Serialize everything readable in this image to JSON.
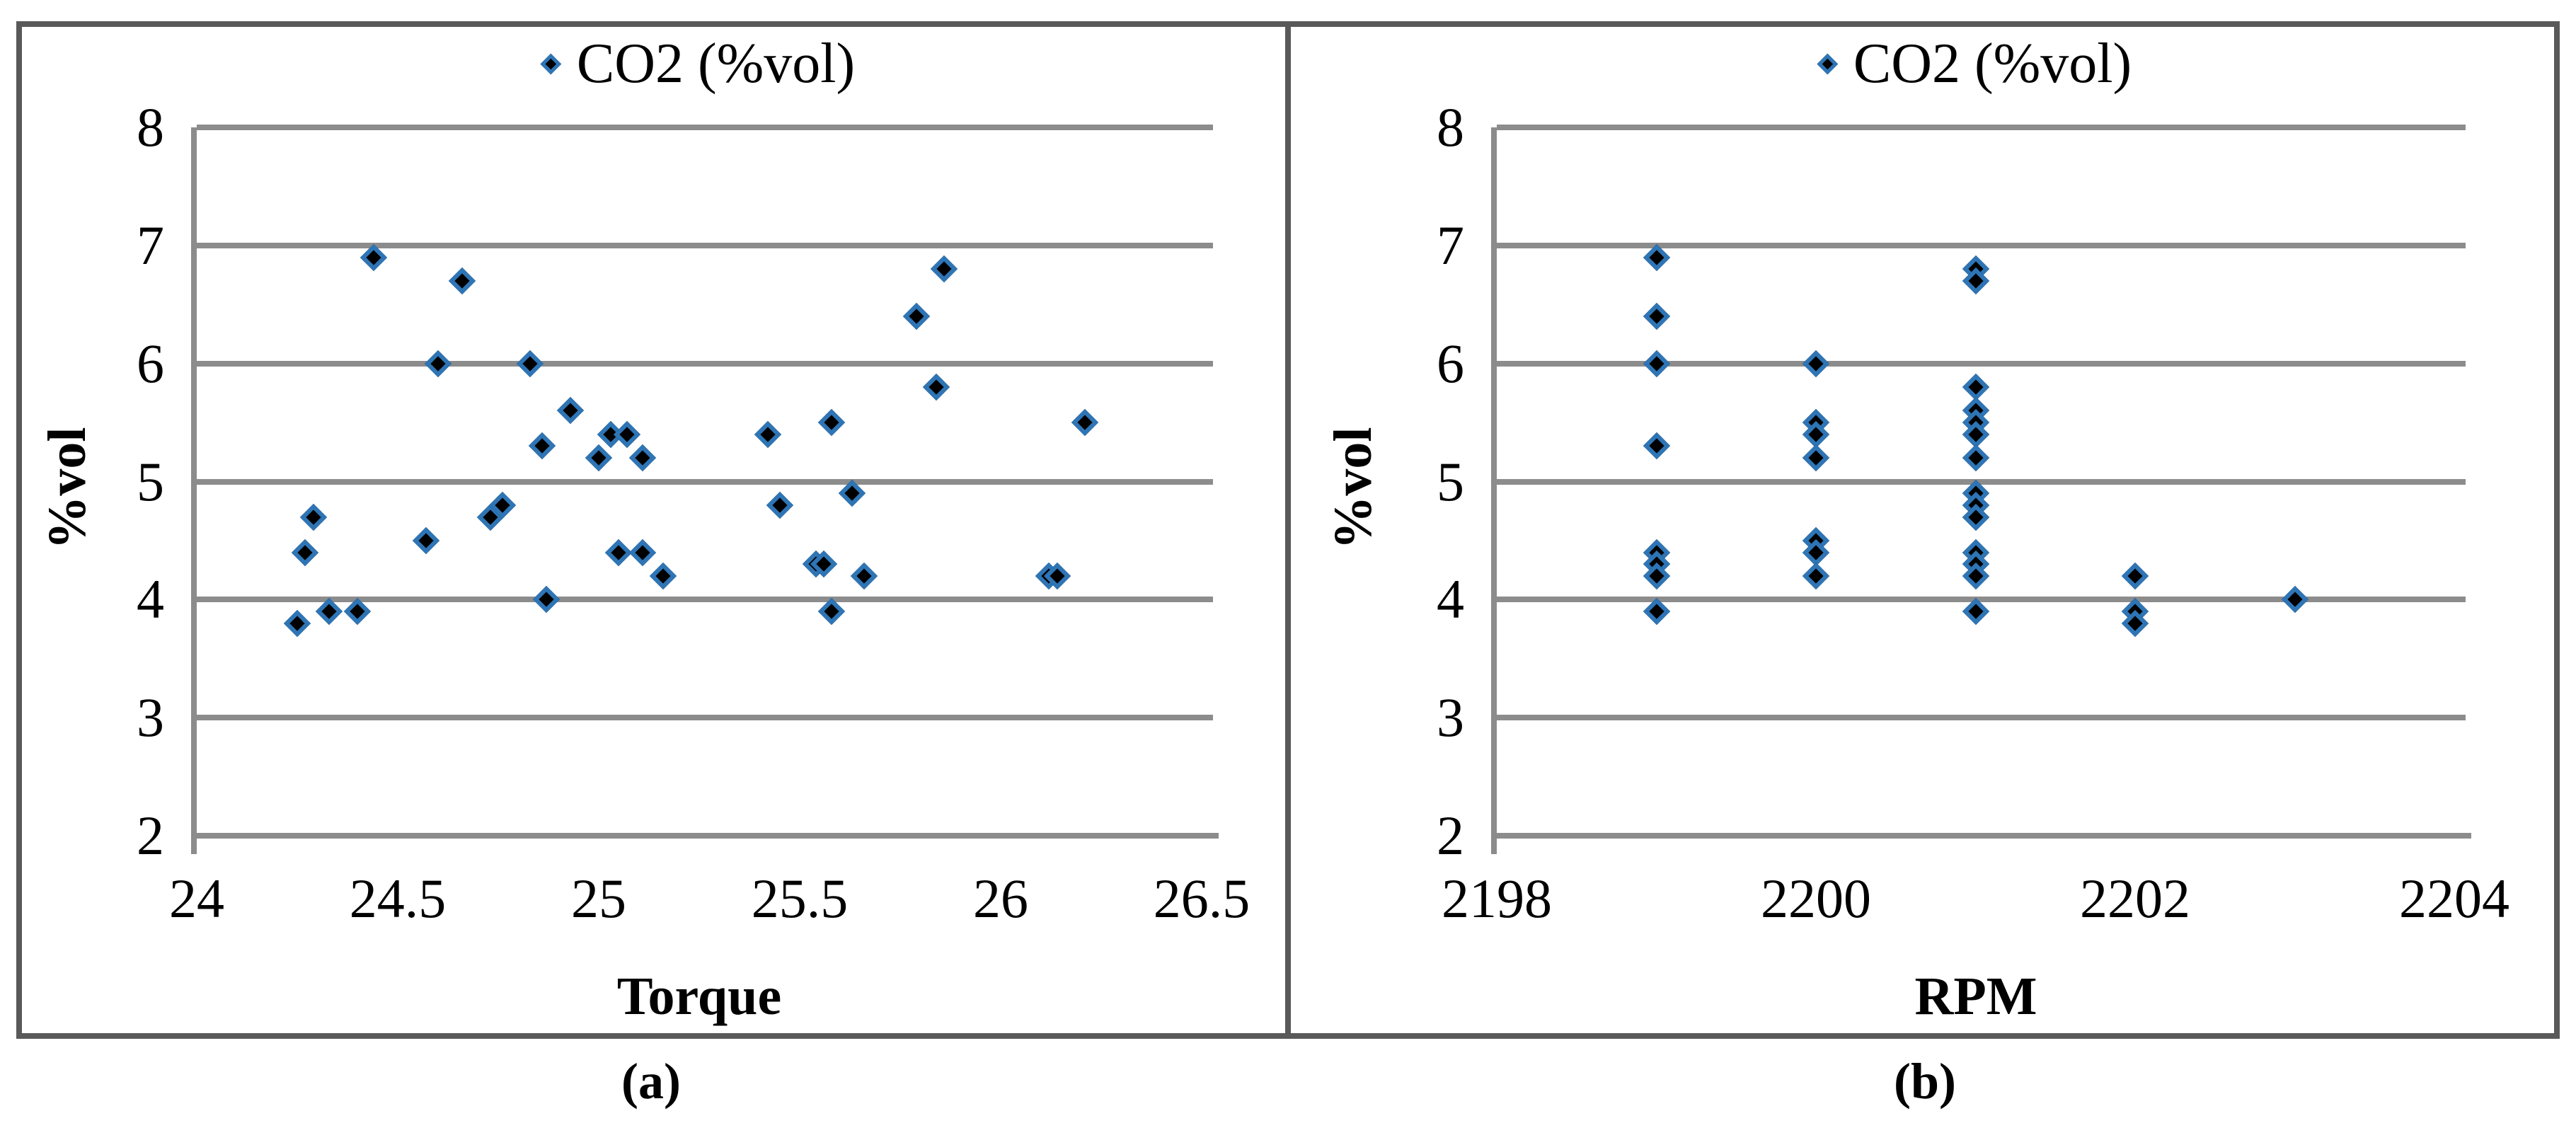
{
  "colors": {
    "marker_fill": "#000000",
    "marker_edge": "#2E75B6",
    "gridline": "#8C8C8C",
    "axis_line": "#8C8C8C",
    "figure_border": "#595959",
    "text": "#000000",
    "background": "#FFFFFF"
  },
  "figure": {
    "legend_label": "CO2 (%vol)",
    "caption_a": "(a)",
    "caption_b": "(b)",
    "xlabel_a": "Torque",
    "xlabel_b": "RPM",
    "ylabel": "%vol"
  },
  "chart_data": [
    {
      "id": "a",
      "type": "scatter",
      "title": "",
      "caption": "(a)",
      "legend": [
        "CO2 (%vol)"
      ],
      "legend_position": "top-center",
      "xlabel": "Torque",
      "ylabel": "%vol",
      "xlim": [
        24,
        26.5
      ],
      "ylim": [
        2,
        8
      ],
      "x_ticks": [
        24,
        24.5,
        25,
        25.5,
        26,
        26.5
      ],
      "x_tick_labels": [
        "24",
        "24.5",
        "25",
        "25.5",
        "26",
        "26.5"
      ],
      "y_ticks": [
        2,
        3,
        4,
        5,
        6,
        7,
        8
      ],
      "y_tick_labels": [
        "2",
        "3",
        "4",
        "5",
        "6",
        "7",
        "8"
      ],
      "grid": "horizontal",
      "series": [
        {
          "name": "CO2 (%vol)",
          "marker": "diamond",
          "points": [
            [
              24.25,
              3.8
            ],
            [
              24.27,
              4.4
            ],
            [
              24.29,
              4.7
            ],
            [
              24.33,
              3.9
            ],
            [
              24.4,
              3.9
            ],
            [
              24.44,
              6.9
            ],
            [
              24.57,
              4.5
            ],
            [
              24.6,
              6.0
            ],
            [
              24.66,
              6.7
            ],
            [
              24.73,
              4.7
            ],
            [
              24.76,
              4.8
            ],
            [
              24.83,
              6.0
            ],
            [
              24.86,
              5.3
            ],
            [
              24.87,
              4.0
            ],
            [
              24.93,
              5.6
            ],
            [
              25.0,
              5.2
            ],
            [
              25.03,
              5.4
            ],
            [
              25.05,
              4.4
            ],
            [
              25.07,
              5.4
            ],
            [
              25.11,
              5.2
            ],
            [
              25.11,
              4.4
            ],
            [
              25.16,
              4.2
            ],
            [
              25.42,
              5.4
            ],
            [
              25.45,
              4.8
            ],
            [
              25.54,
              4.3
            ],
            [
              25.56,
              4.3
            ],
            [
              25.58,
              3.9
            ],
            [
              25.58,
              5.5
            ],
            [
              25.63,
              4.9
            ],
            [
              25.66,
              4.2
            ],
            [
              25.79,
              6.4
            ],
            [
              25.84,
              5.8
            ],
            [
              25.86,
              6.8
            ],
            [
              26.12,
              4.2
            ],
            [
              26.14,
              4.2
            ],
            [
              26.21,
              5.5
            ]
          ]
        }
      ]
    },
    {
      "id": "b",
      "type": "scatter",
      "title": "",
      "caption": "(b)",
      "legend": [
        "CO2 (%vol)"
      ],
      "legend_position": "top-center",
      "xlabel": "RPM",
      "ylabel": "%vol",
      "xlim": [
        2198,
        2204
      ],
      "ylim": [
        2,
        8
      ],
      "x_ticks": [
        2198,
        2200,
        2202,
        2204
      ],
      "x_tick_labels": [
        "2198",
        "2200",
        "2202",
        "2204"
      ],
      "y_ticks": [
        2,
        3,
        4,
        5,
        6,
        7,
        8
      ],
      "y_tick_labels": [
        "2",
        "3",
        "4",
        "5",
        "6",
        "7",
        "8"
      ],
      "grid": "horizontal",
      "series": [
        {
          "name": "CO2 (%vol)",
          "marker": "diamond",
          "points": [
            [
              2199,
              6.9
            ],
            [
              2199,
              6.4
            ],
            [
              2199,
              6.0
            ],
            [
              2199,
              5.3
            ],
            [
              2199,
              4.4
            ],
            [
              2199,
              4.3
            ],
            [
              2199,
              4.2
            ],
            [
              2199,
              3.9
            ],
            [
              2200,
              6.0
            ],
            [
              2200,
              5.5
            ],
            [
              2200,
              5.4
            ],
            [
              2200,
              5.2
            ],
            [
              2200,
              4.5
            ],
            [
              2200,
              4.4
            ],
            [
              2200,
              4.2
            ],
            [
              2201,
              6.8
            ],
            [
              2201,
              6.7
            ],
            [
              2201,
              5.8
            ],
            [
              2201,
              5.6
            ],
            [
              2201,
              5.5
            ],
            [
              2201,
              5.4
            ],
            [
              2201,
              5.4
            ],
            [
              2201,
              5.2
            ],
            [
              2201,
              4.9
            ],
            [
              2201,
              4.8
            ],
            [
              2201,
              4.8
            ],
            [
              2201,
              4.7
            ],
            [
              2201,
              4.7
            ],
            [
              2201,
              4.4
            ],
            [
              2201,
              4.3
            ],
            [
              2201,
              4.2
            ],
            [
              2201,
              3.9
            ],
            [
              2202,
              4.2
            ],
            [
              2202,
              3.9
            ],
            [
              2202,
              3.8
            ],
            [
              2203,
              4.0
            ]
          ]
        }
      ]
    }
  ]
}
